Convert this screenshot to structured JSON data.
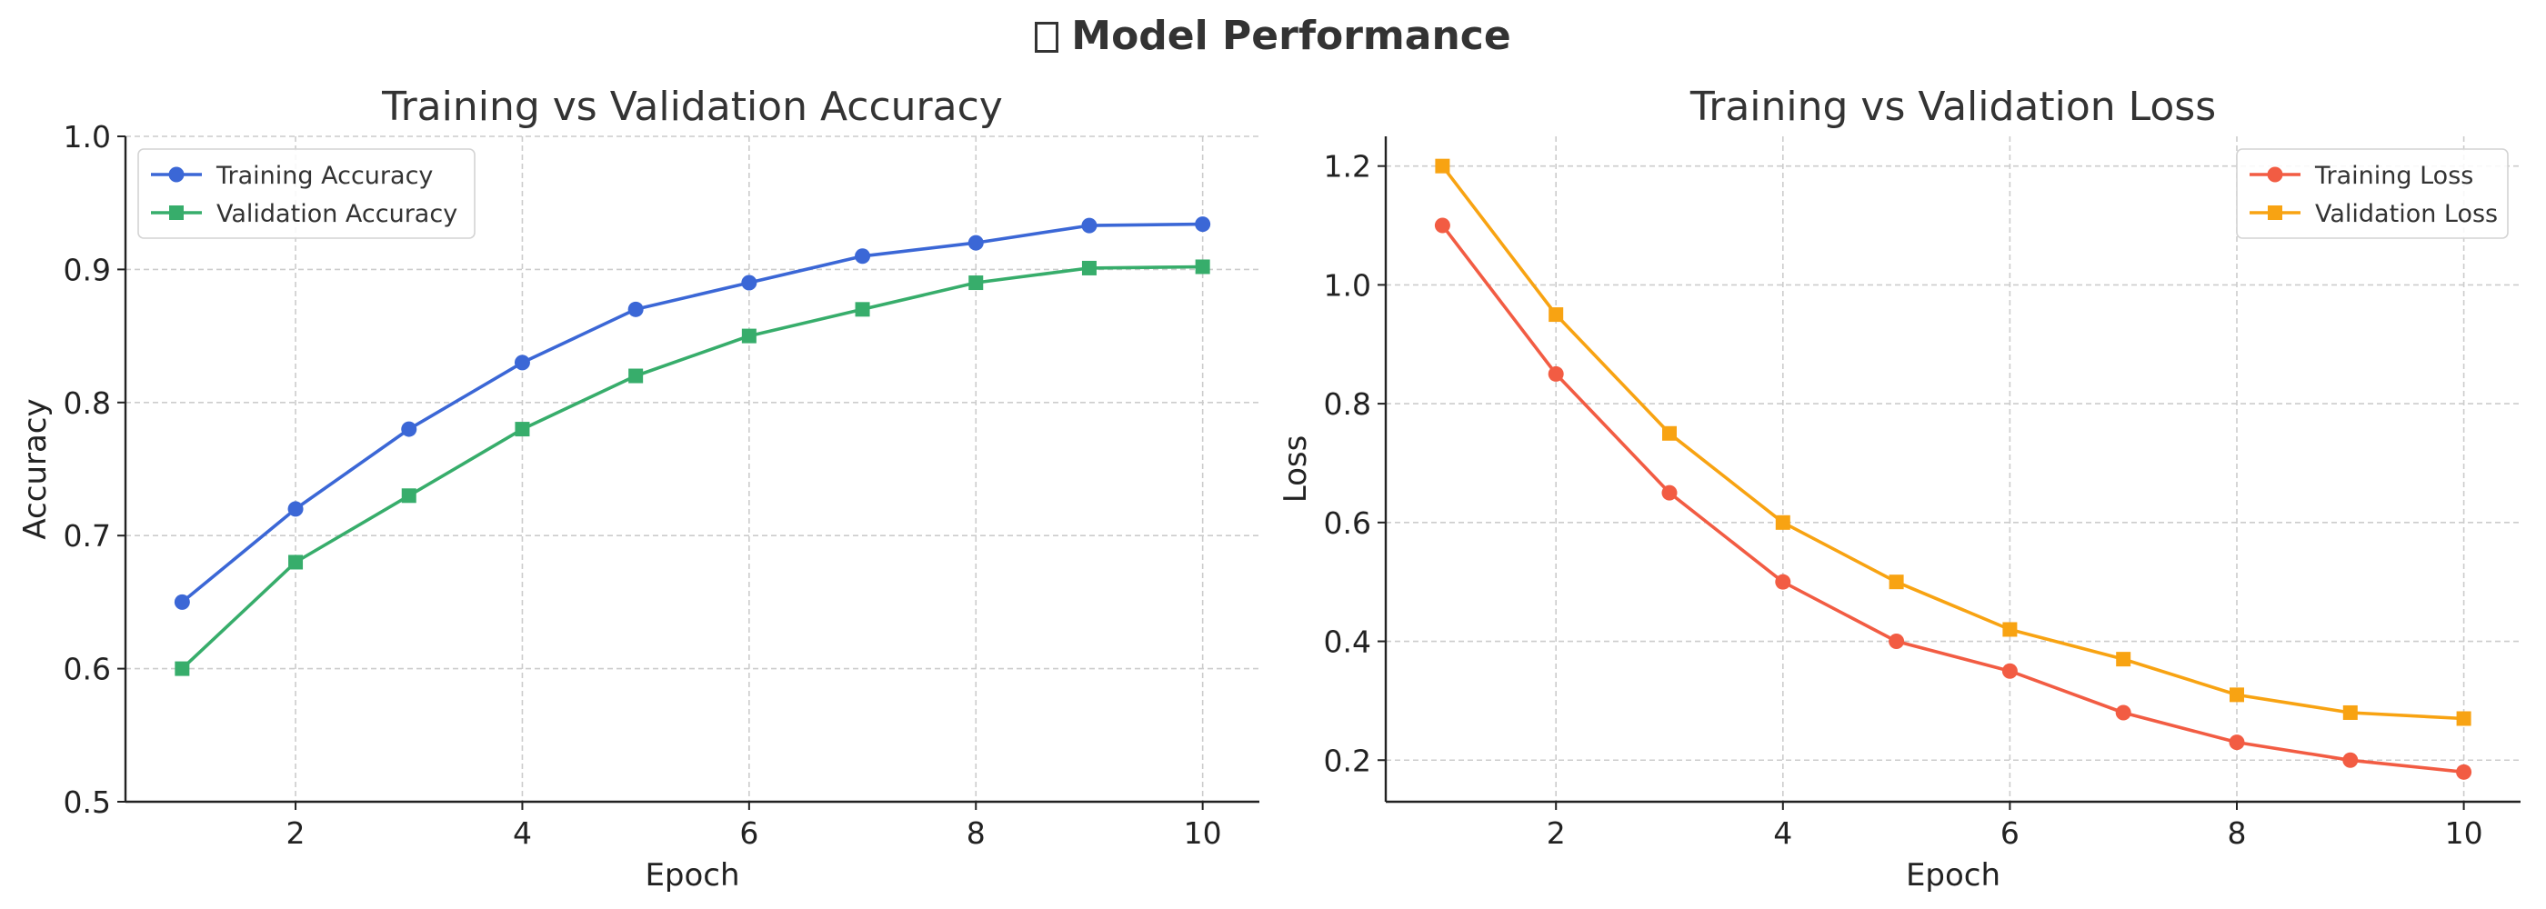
{
  "figure": {
    "title": "Model Performance",
    "title_icon": "chart-icon"
  },
  "chart_data": [
    {
      "type": "line",
      "title": "Training vs Validation Accuracy",
      "xlabel": "Epoch",
      "ylabel": "Accuracy",
      "xlim": [
        0.5,
        10.5
      ],
      "ylim": [
        0.5,
        1.0
      ],
      "xticks": [
        2,
        4,
        6,
        8,
        10
      ],
      "yticks": [
        0.5,
        0.6,
        0.7,
        0.8,
        0.9,
        1.0
      ],
      "xtick_labels": [
        "2",
        "4",
        "6",
        "8",
        "10"
      ],
      "ytick_labels": [
        "0.5",
        "0.6",
        "0.7",
        "0.8",
        "0.9",
        "1.0"
      ],
      "grid": true,
      "legend": "top-left",
      "x": [
        1,
        2,
        3,
        4,
        5,
        6,
        7,
        8,
        9,
        10
      ],
      "series": [
        {
          "name": "Training Accuracy",
          "color": "#3b67d6",
          "marker": "circle",
          "values": [
            0.65,
            0.72,
            0.78,
            0.83,
            0.87,
            0.89,
            0.91,
            0.92,
            0.933,
            0.934
          ]
        },
        {
          "name": "Validation Accuracy",
          "color": "#37ad6b",
          "marker": "square",
          "values": [
            0.6,
            0.68,
            0.73,
            0.78,
            0.82,
            0.85,
            0.87,
            0.89,
            0.901,
            0.902
          ]
        }
      ]
    },
    {
      "type": "line",
      "title": "Training vs Validation Loss",
      "xlabel": "Epoch",
      "ylabel": "Loss",
      "xlim": [
        0.5,
        10.5
      ],
      "ylim": [
        0.13,
        1.25
      ],
      "xticks": [
        2,
        4,
        6,
        8,
        10
      ],
      "yticks": [
        0.2,
        0.4,
        0.6,
        0.8,
        1.0,
        1.2
      ],
      "xtick_labels": [
        "2",
        "4",
        "6",
        "8",
        "10"
      ],
      "ytick_labels": [
        "0.2",
        "0.4",
        "0.6",
        "0.8",
        "1.0",
        "1.2"
      ],
      "grid": true,
      "legend": "top-right",
      "x": [
        1,
        2,
        3,
        4,
        5,
        6,
        7,
        8,
        9,
        10
      ],
      "series": [
        {
          "name": "Training Loss",
          "color": "#f25c43",
          "marker": "circle",
          "values": [
            1.1,
            0.85,
            0.65,
            0.5,
            0.4,
            0.35,
            0.28,
            0.23,
            0.2,
            0.18
          ]
        },
        {
          "name": "Validation Loss",
          "color": "#f8a312",
          "marker": "square",
          "values": [
            1.2,
            0.95,
            0.75,
            0.6,
            0.5,
            0.42,
            0.37,
            0.31,
            0.28,
            0.27
          ]
        }
      ]
    }
  ]
}
